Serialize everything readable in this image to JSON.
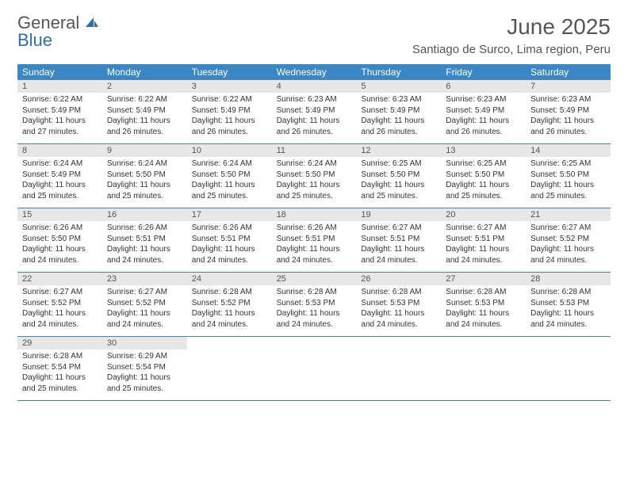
{
  "brand": {
    "name_top": "General",
    "name_bottom": "Blue"
  },
  "title": "June 2025",
  "location": "Santiago de Surco, Lima region, Peru",
  "colors": {
    "header_bg": "#3b86c4",
    "header_text": "#ffffff",
    "daynum_bg": "#e7e7e7",
    "rule": "#3b86c4",
    "title_color": "#555555"
  },
  "day_labels": [
    "Sunday",
    "Monday",
    "Tuesday",
    "Wednesday",
    "Thursday",
    "Friday",
    "Saturday"
  ],
  "weeks": [
    [
      {
        "n": "1",
        "sunrise": "6:22 AM",
        "sunset": "5:49 PM",
        "daylight": "11 hours and 27 minutes."
      },
      {
        "n": "2",
        "sunrise": "6:22 AM",
        "sunset": "5:49 PM",
        "daylight": "11 hours and 26 minutes."
      },
      {
        "n": "3",
        "sunrise": "6:22 AM",
        "sunset": "5:49 PM",
        "daylight": "11 hours and 26 minutes."
      },
      {
        "n": "4",
        "sunrise": "6:23 AM",
        "sunset": "5:49 PM",
        "daylight": "11 hours and 26 minutes."
      },
      {
        "n": "5",
        "sunrise": "6:23 AM",
        "sunset": "5:49 PM",
        "daylight": "11 hours and 26 minutes."
      },
      {
        "n": "6",
        "sunrise": "6:23 AM",
        "sunset": "5:49 PM",
        "daylight": "11 hours and 26 minutes."
      },
      {
        "n": "7",
        "sunrise": "6:23 AM",
        "sunset": "5:49 PM",
        "daylight": "11 hours and 26 minutes."
      }
    ],
    [
      {
        "n": "8",
        "sunrise": "6:24 AM",
        "sunset": "5:49 PM",
        "daylight": "11 hours and 25 minutes."
      },
      {
        "n": "9",
        "sunrise": "6:24 AM",
        "sunset": "5:50 PM",
        "daylight": "11 hours and 25 minutes."
      },
      {
        "n": "10",
        "sunrise": "6:24 AM",
        "sunset": "5:50 PM",
        "daylight": "11 hours and 25 minutes."
      },
      {
        "n": "11",
        "sunrise": "6:24 AM",
        "sunset": "5:50 PM",
        "daylight": "11 hours and 25 minutes."
      },
      {
        "n": "12",
        "sunrise": "6:25 AM",
        "sunset": "5:50 PM",
        "daylight": "11 hours and 25 minutes."
      },
      {
        "n": "13",
        "sunrise": "6:25 AM",
        "sunset": "5:50 PM",
        "daylight": "11 hours and 25 minutes."
      },
      {
        "n": "14",
        "sunrise": "6:25 AM",
        "sunset": "5:50 PM",
        "daylight": "11 hours and 25 minutes."
      }
    ],
    [
      {
        "n": "15",
        "sunrise": "6:26 AM",
        "sunset": "5:50 PM",
        "daylight": "11 hours and 24 minutes."
      },
      {
        "n": "16",
        "sunrise": "6:26 AM",
        "sunset": "5:51 PM",
        "daylight": "11 hours and 24 minutes."
      },
      {
        "n": "17",
        "sunrise": "6:26 AM",
        "sunset": "5:51 PM",
        "daylight": "11 hours and 24 minutes."
      },
      {
        "n": "18",
        "sunrise": "6:26 AM",
        "sunset": "5:51 PM",
        "daylight": "11 hours and 24 minutes."
      },
      {
        "n": "19",
        "sunrise": "6:27 AM",
        "sunset": "5:51 PM",
        "daylight": "11 hours and 24 minutes."
      },
      {
        "n": "20",
        "sunrise": "6:27 AM",
        "sunset": "5:51 PM",
        "daylight": "11 hours and 24 minutes."
      },
      {
        "n": "21",
        "sunrise": "6:27 AM",
        "sunset": "5:52 PM",
        "daylight": "11 hours and 24 minutes."
      }
    ],
    [
      {
        "n": "22",
        "sunrise": "6:27 AM",
        "sunset": "5:52 PM",
        "daylight": "11 hours and 24 minutes."
      },
      {
        "n": "23",
        "sunrise": "6:27 AM",
        "sunset": "5:52 PM",
        "daylight": "11 hours and 24 minutes."
      },
      {
        "n": "24",
        "sunrise": "6:28 AM",
        "sunset": "5:52 PM",
        "daylight": "11 hours and 24 minutes."
      },
      {
        "n": "25",
        "sunrise": "6:28 AM",
        "sunset": "5:53 PM",
        "daylight": "11 hours and 24 minutes."
      },
      {
        "n": "26",
        "sunrise": "6:28 AM",
        "sunset": "5:53 PM",
        "daylight": "11 hours and 24 minutes."
      },
      {
        "n": "27",
        "sunrise": "6:28 AM",
        "sunset": "5:53 PM",
        "daylight": "11 hours and 24 minutes."
      },
      {
        "n": "28",
        "sunrise": "6:28 AM",
        "sunset": "5:53 PM",
        "daylight": "11 hours and 24 minutes."
      }
    ],
    [
      {
        "n": "29",
        "sunrise": "6:28 AM",
        "sunset": "5:54 PM",
        "daylight": "11 hours and 25 minutes."
      },
      {
        "n": "30",
        "sunrise": "6:29 AM",
        "sunset": "5:54 PM",
        "daylight": "11 hours and 25 minutes."
      },
      null,
      null,
      null,
      null,
      null
    ]
  ],
  "labels": {
    "sunrise": "Sunrise: ",
    "sunset": "Sunset: ",
    "daylight": "Daylight: "
  }
}
